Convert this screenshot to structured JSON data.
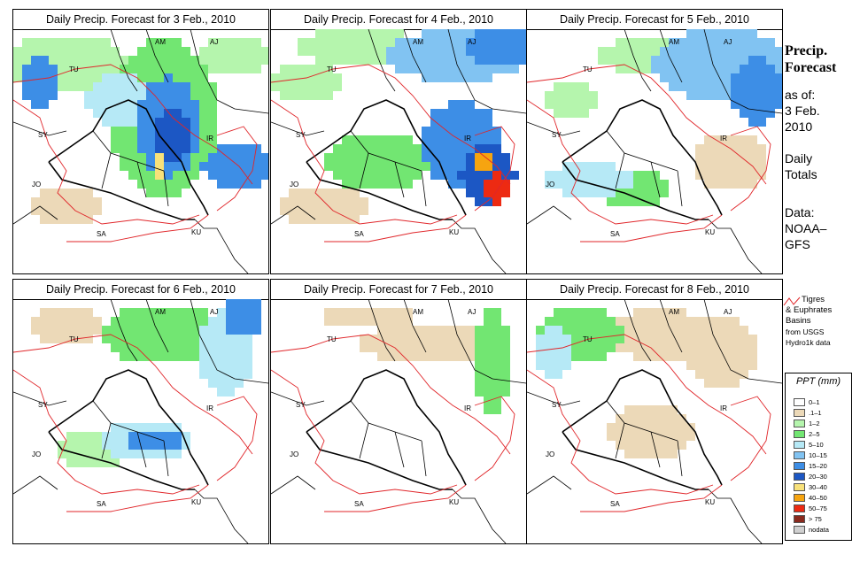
{
  "panels": [
    {
      "title": "Daily Precip. Forecast for  3 Feb., 2010",
      "day": 3
    },
    {
      "title": "Daily Precip. Forecast for  4 Feb., 2010",
      "day": 4
    },
    {
      "title": "Daily Precip. Forecast for  5 Feb., 2010",
      "day": 5
    },
    {
      "title": "Daily Precip. Forecast for  6 Feb., 2010",
      "day": 6
    },
    {
      "title": "Daily Precip. Forecast for  7 Feb., 2010",
      "day": 7
    },
    {
      "title": "Daily Precip. Forecast for  8 Feb., 2010",
      "day": 8
    }
  ],
  "map_labels": [
    "AM",
    "AJ",
    "TU",
    "SY",
    "IR",
    "JO",
    "SA",
    "KU"
  ],
  "side": {
    "title_line1": "Precip.",
    "title_line2": "Forecast",
    "asof": "as of:",
    "date_line1": "3 Feb.",
    "date_line2": "2010",
    "totals_line1": "Daily",
    "totals_line2": "Totals",
    "data_line1": "Data:",
    "data_line2": "NOAA–",
    "data_line3": "GFS"
  },
  "basin_legend": {
    "line1": "Tigres",
    "line2": "& Euphrates",
    "line3": "Basins",
    "line4": "from USGS",
    "line5": "Hydro1k data",
    "color": "#e0262a"
  },
  "ppt_legend": {
    "title": "PPT (mm)",
    "classes": [
      {
        "label": "0–1",
        "color": "#ffffff"
      },
      {
        "label": ".1–1",
        "color": "#ecd9b8"
      },
      {
        "label": "1–2",
        "color": "#b5f5ad"
      },
      {
        "label": "2–5",
        "color": "#72e672"
      },
      {
        "label": "5–10",
        "color": "#b6e9f6"
      },
      {
        "label": "10–15",
        "color": "#81c3f2"
      },
      {
        "label": "15–20",
        "color": "#3d8ee6"
      },
      {
        "label": "20–30",
        "color": "#1c57c4"
      },
      {
        "label": "30–40",
        "color": "#f8e17a"
      },
      {
        "label": "40–50",
        "color": "#f6a410"
      },
      {
        "label": "50–75",
        "color": "#ed2a12"
      },
      {
        "label": "> 75",
        "color": "#8a2a1e"
      },
      {
        "label": "nodata",
        "color": "#d0d0d0"
      }
    ]
  }
}
